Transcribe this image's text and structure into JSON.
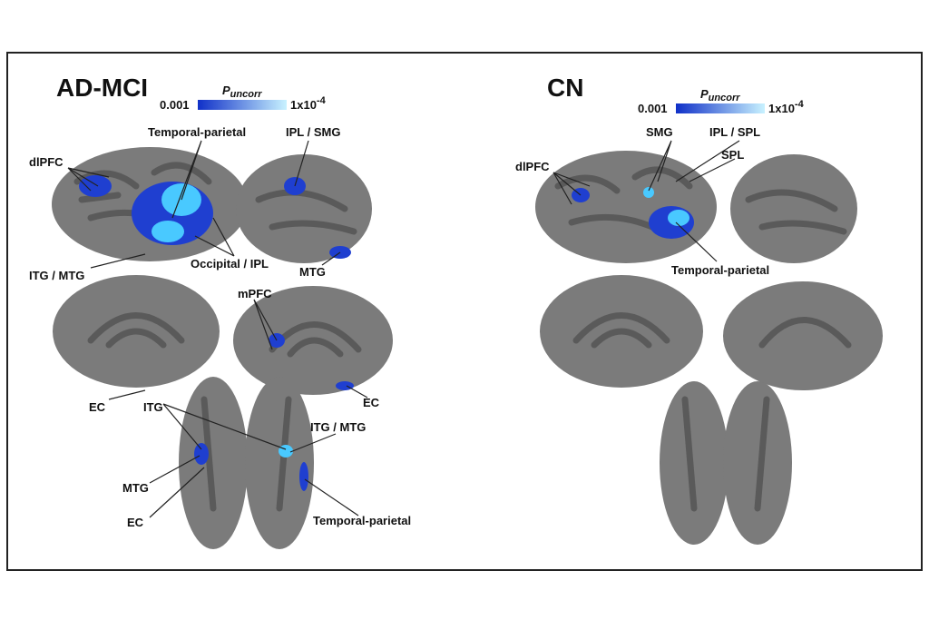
{
  "panels": [
    {
      "title": "AD-MCI",
      "colorbar": {
        "symbol": "P",
        "subscript": "uncorr",
        "min_label": "0.001",
        "max_base": "1x10",
        "max_exponent": "-4"
      },
      "labels": [
        "dlPFC",
        "Temporal-parietal",
        "IPL / SMG",
        "Occipital / IPL",
        "ITG / MTG",
        "MTG",
        "mPFC",
        "EC",
        "ITG",
        "EC",
        "ITG / MTG",
        "MTG",
        "EC",
        "Temporal-parietal"
      ]
    },
    {
      "title": "CN",
      "colorbar": {
        "symbol": "P",
        "subscript": "uncorr",
        "min_label": "0.001",
        "max_base": "1x10",
        "max_exponent": "-4"
      },
      "labels": [
        "dlPFC",
        "SMG",
        "IPL / SPL",
        "SPL",
        "Temporal-parietal"
      ]
    }
  ]
}
